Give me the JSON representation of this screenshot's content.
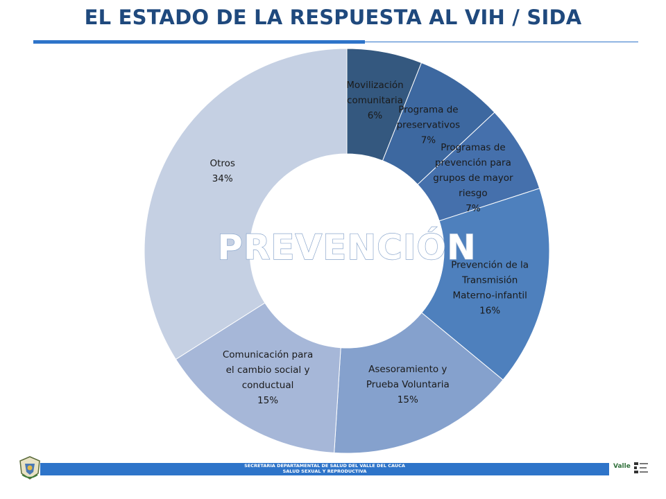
{
  "header": {
    "title": "EL ESTADO DE LA RESPUESTA AL VIH / SIDA"
  },
  "chart_data": {
    "type": "pie",
    "style": "donut",
    "center_label": "PREVENCIÓN",
    "start": "12 o'clock, clockwise",
    "slices": [
      {
        "lines": [
          "Movilización",
          "comunitaria",
          "6%"
        ],
        "value": 6,
        "color": "#34587F"
      },
      {
        "lines": [
          "Programa de",
          "preservativos",
          "7%"
        ],
        "value": 7,
        "color": "#3D68A0"
      },
      {
        "lines": [
          "Programas de",
          "prevención para",
          "grupos de mayor",
          "riesgo",
          "7%"
        ],
        "value": 7,
        "color": "#4570AC"
      },
      {
        "lines": [
          "Prevención de la",
          "Transmisión",
          "Materno-infantil",
          "16%"
        ],
        "value": 16,
        "color": "#4E80BD"
      },
      {
        "lines": [
          "Asesoramiento y",
          "Prueba Voluntaria",
          "15%"
        ],
        "value": 15,
        "color": "#85A1CD"
      },
      {
        "lines": [
          "Comunicación para",
          "el cambio social  y",
          "conductual",
          "15%"
        ],
        "value": 15,
        "color": "#A6B7D8"
      },
      {
        "lines": [
          "Otros",
          "34%"
        ],
        "value": 34,
        "color": "#C5D0E3"
      }
    ]
  },
  "footer": {
    "line1": "SECRETARIA DEPARTAMENTAL DE  SALUD DEL VALLE DEL CAUCA",
    "line2": "SALUD SEXUAL Y REPRODUCTIVA",
    "logo_right_text": "Valle"
  },
  "colors": {
    "accent": "#2E74C9",
    "title": "#1F497D"
  }
}
